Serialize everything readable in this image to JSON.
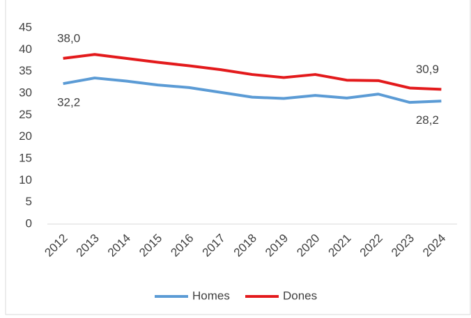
{
  "chart_data": {
    "type": "line",
    "categories": [
      "2012",
      "2013",
      "2014",
      "2015",
      "2016",
      "2017",
      "2018",
      "2019",
      "2020",
      "2021",
      "2022",
      "2023",
      "2024"
    ],
    "series": [
      {
        "name": "Homes",
        "color": "#5b9bd5",
        "values": [
          32.2,
          33.5,
          32.8,
          31.9,
          31.3,
          30.2,
          29.1,
          28.8,
          29.5,
          28.9,
          29.8,
          27.9,
          28.2
        ],
        "value_labels": [
          "32,2",
          null,
          null,
          null,
          null,
          null,
          null,
          null,
          null,
          null,
          null,
          null,
          "28,2"
        ]
      },
      {
        "name": "Dones",
        "color": "#e31a1c",
        "values": [
          38.0,
          38.9,
          38.0,
          37.1,
          36.3,
          35.4,
          34.3,
          33.6,
          34.3,
          33.0,
          32.9,
          31.2,
          30.9
        ],
        "value_labels": [
          "38,0",
          null,
          null,
          null,
          null,
          null,
          null,
          null,
          null,
          null,
          null,
          null,
          "30,9"
        ]
      }
    ],
    "ylim": [
      0,
      45
    ],
    "yticks": [
      0,
      5,
      10,
      15,
      20,
      25,
      30,
      35,
      40,
      45
    ],
    "grid": false,
    "legend": "bottom"
  }
}
